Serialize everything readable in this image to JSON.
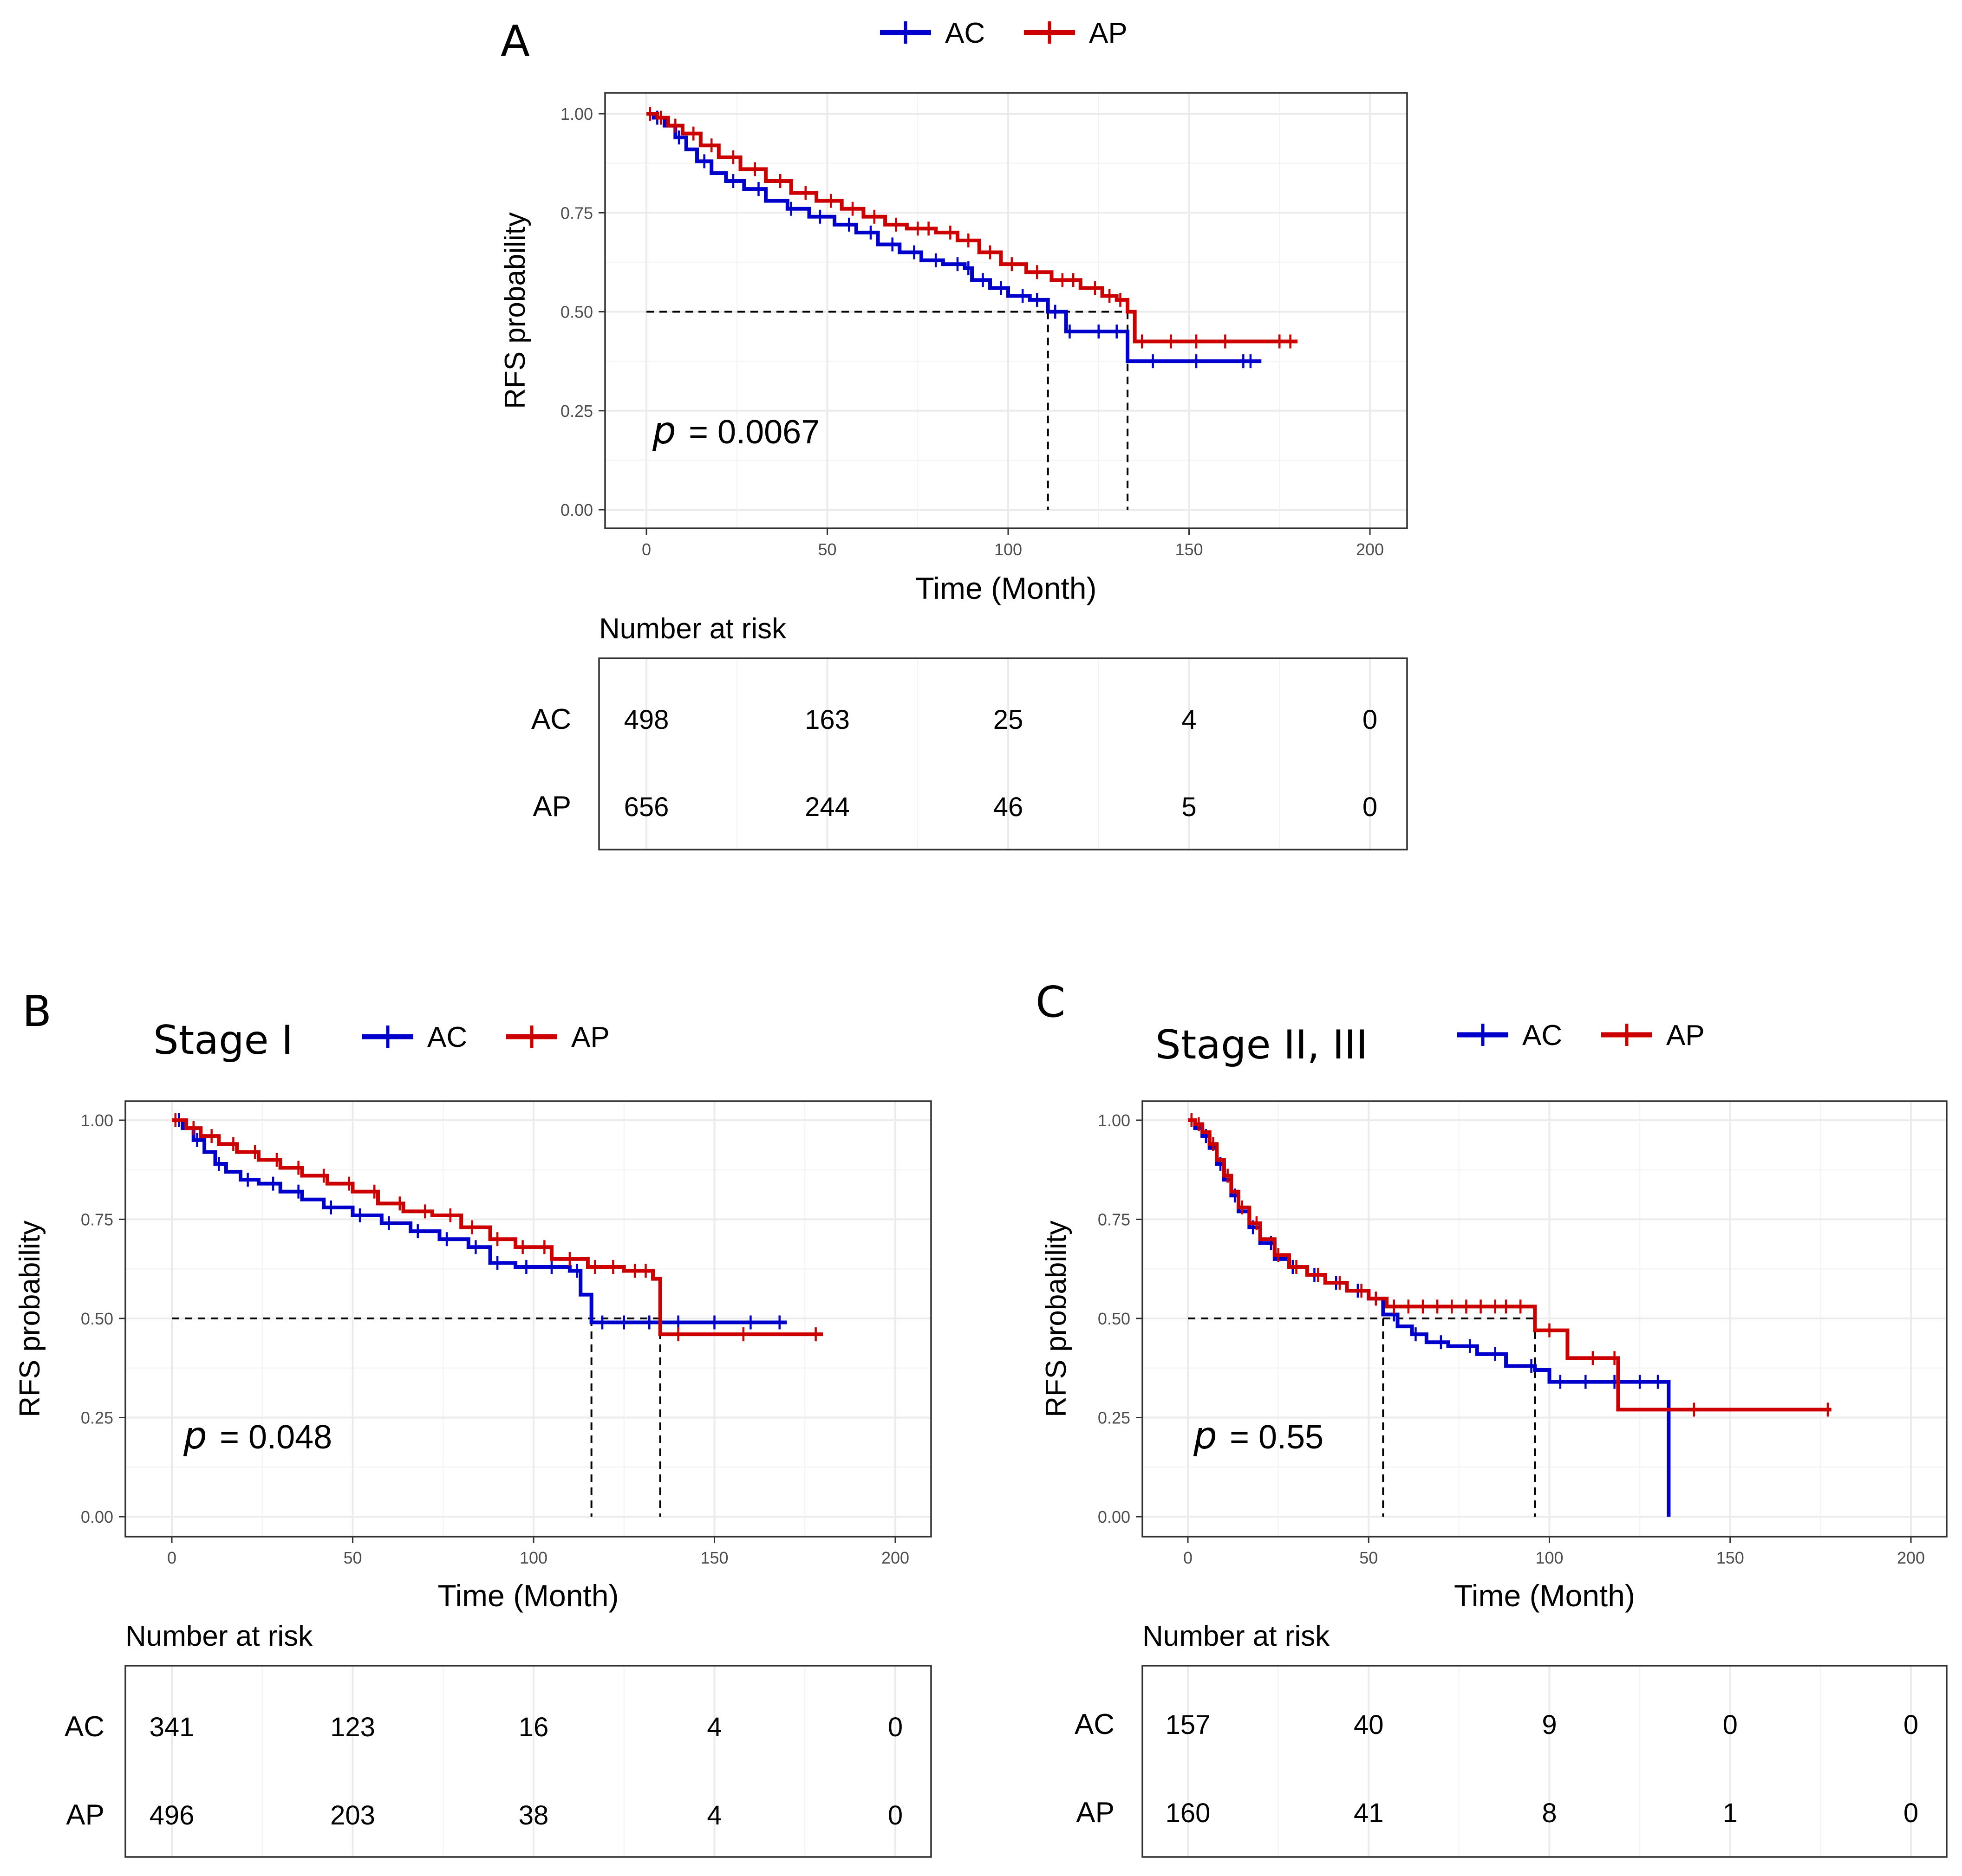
{
  "colors": {
    "AC": "#0000cd",
    "AP": "#cd0000"
  },
  "chart_data": [
    {
      "panel_label": "A",
      "subtitle": "",
      "type": "line",
      "chart_kind": "kaplan-meier",
      "legend": [
        "AC",
        "AP"
      ],
      "legend_position": "top",
      "xlabel": "Time (Month)",
      "ylabel": "RFS probability",
      "xlim": [
        0,
        200
      ],
      "ylim": [
        0,
        1
      ],
      "x_ticks": [
        0,
        50,
        100,
        150,
        200
      ],
      "y_ticks": [
        0,
        0.25,
        0.5,
        0.75,
        1
      ],
      "x_tick_labels": [
        "0",
        "50",
        "100",
        "150",
        "200"
      ],
      "y_tick_labels": [
        "0.00",
        "0.25",
        "0.50",
        "0.75",
        "1.00"
      ],
      "p_label": "p",
      "p_value": "= 0.0067",
      "medians": [
        111,
        133
      ],
      "series": [
        {
          "name": "AC",
          "x": [
            0,
            2,
            5,
            8,
            11,
            14,
            18,
            22,
            27,
            33,
            39,
            45,
            52,
            58,
            64,
            70,
            76,
            82,
            88,
            90,
            95,
            100,
            106,
            111,
            116,
            120,
            133,
            150,
            170
          ],
          "y": [
            1,
            0.99,
            0.97,
            0.94,
            0.91,
            0.88,
            0.85,
            0.83,
            0.81,
            0.78,
            0.76,
            0.74,
            0.72,
            0.7,
            0.67,
            0.65,
            0.63,
            0.62,
            0.61,
            0.58,
            0.56,
            0.54,
            0.53,
            0.5,
            0.45,
            0.45,
            0.375,
            0.375,
            0.375
          ],
          "censor_x": [
            3,
            9,
            16,
            24,
            31,
            40,
            48,
            56,
            62,
            68,
            74,
            80,
            86,
            89,
            93,
            98,
            104,
            108,
            113,
            117,
            125,
            130,
            140,
            152,
            165,
            167
          ]
        },
        {
          "name": "AP",
          "x": [
            0,
            3,
            6,
            10,
            15,
            20,
            26,
            33,
            40,
            47,
            54,
            60,
            66,
            72,
            80,
            86,
            92,
            98,
            105,
            112,
            120,
            126,
            130,
            133,
            135,
            150,
            180
          ],
          "y": [
            1,
            0.99,
            0.97,
            0.95,
            0.92,
            0.89,
            0.86,
            0.83,
            0.8,
            0.78,
            0.76,
            0.74,
            0.72,
            0.71,
            0.7,
            0.68,
            0.65,
            0.62,
            0.6,
            0.58,
            0.56,
            0.54,
            0.53,
            0.5,
            0.425,
            0.425,
            0.425
          ],
          "censor_x": [
            1,
            4,
            8,
            13,
            18,
            24,
            30,
            37,
            44,
            51,
            57,
            63,
            69,
            75,
            78,
            84,
            89,
            95,
            101,
            108,
            115,
            118,
            124,
            128,
            131,
            137,
            145,
            152,
            160,
            175,
            178
          ]
        }
      ],
      "risk_table": {
        "title": "Number at risk",
        "times": [
          0,
          50,
          100,
          150,
          200
        ],
        "rows": [
          {
            "name": "AC",
            "values": [
              "498",
              "163",
              "25",
              "4",
              "0"
            ]
          },
          {
            "name": "AP",
            "values": [
              "656",
              "244",
              "46",
              "5",
              "0"
            ]
          }
        ]
      }
    },
    {
      "panel_label": "B",
      "subtitle": "Stage I",
      "type": "line",
      "chart_kind": "kaplan-meier",
      "legend": [
        "AC",
        "AP"
      ],
      "legend_position": "top",
      "xlabel": "Time (Month)",
      "ylabel": "RFS probability",
      "xlim": [
        0,
        200
      ],
      "ylim": [
        0,
        1
      ],
      "x_ticks": [
        0,
        50,
        100,
        150,
        200
      ],
      "y_ticks": [
        0,
        0.25,
        0.5,
        0.75,
        1
      ],
      "x_tick_labels": [
        "0",
        "50",
        "100",
        "150",
        "200"
      ],
      "y_tick_labels": [
        "0.00",
        "0.25",
        "0.50",
        "0.75",
        "1.00"
      ],
      "p_label": "p",
      "p_value": "= 0.048",
      "medians": [
        116,
        135
      ],
      "series": [
        {
          "name": "AC",
          "x": [
            0,
            3,
            6,
            9,
            12,
            15,
            19,
            24,
            30,
            36,
            42,
            50,
            58,
            66,
            74,
            82,
            88,
            95,
            100,
            110,
            113,
            116,
            170
          ],
          "y": [
            1,
            0.98,
            0.95,
            0.92,
            0.89,
            0.87,
            0.85,
            0.84,
            0.82,
            0.8,
            0.78,
            0.76,
            0.74,
            0.72,
            0.7,
            0.68,
            0.64,
            0.63,
            0.63,
            0.62,
            0.56,
            0.49,
            0.49
          ],
          "censor_x": [
            2,
            7,
            13,
            21,
            28,
            35,
            44,
            52,
            60,
            68,
            76,
            84,
            90,
            98,
            105,
            112,
            119,
            125,
            132,
            140,
            150,
            160,
            168
          ]
        },
        {
          "name": "AP",
          "x": [
            0,
            4,
            8,
            13,
            18,
            24,
            30,
            36,
            43,
            50,
            57,
            64,
            72,
            80,
            88,
            95,
            105,
            115,
            125,
            133,
            135,
            180
          ],
          "y": [
            1,
            0.98,
            0.96,
            0.94,
            0.92,
            0.9,
            0.88,
            0.86,
            0.84,
            0.82,
            0.79,
            0.77,
            0.76,
            0.73,
            0.7,
            0.68,
            0.65,
            0.63,
            0.62,
            0.6,
            0.46,
            0.46
          ],
          "censor_x": [
            1,
            6,
            11,
            17,
            23,
            29,
            35,
            42,
            49,
            56,
            63,
            70,
            77,
            83,
            90,
            97,
            103,
            110,
            117,
            122,
            128,
            131,
            140,
            158,
            178
          ]
        }
      ],
      "risk_table": {
        "title": "Number at risk",
        "times": [
          0,
          50,
          100,
          150,
          200
        ],
        "rows": [
          {
            "name": "AC",
            "values": [
              "341",
              "123",
              "16",
              "4",
              "0"
            ]
          },
          {
            "name": "AP",
            "values": [
              "496",
              "203",
              "38",
              "4",
              "0"
            ]
          }
        ]
      }
    },
    {
      "panel_label": "C",
      "subtitle": "Stage II, III",
      "type": "line",
      "chart_kind": "kaplan-meier",
      "legend": [
        "AC",
        "AP"
      ],
      "legend_position": "top",
      "xlabel": "Time (Month)",
      "ylabel": "RFS probability",
      "xlim": [
        0,
        200
      ],
      "ylim": [
        0,
        1
      ],
      "x_ticks": [
        0,
        50,
        100,
        150,
        200
      ],
      "y_ticks": [
        0,
        0.25,
        0.5,
        0.75,
        1
      ],
      "x_tick_labels": [
        "0",
        "50",
        "100",
        "150",
        "200"
      ],
      "y_tick_labels": [
        "0.00",
        "0.25",
        "0.50",
        "0.75",
        "1.00"
      ],
      "p_label": "p",
      "p_value": "= 0.55",
      "medians": [
        54,
        96
      ],
      "series": [
        {
          "name": "AC",
          "x": [
            0,
            2,
            4,
            6,
            8,
            10,
            12,
            14,
            17,
            20,
            24,
            28,
            33,
            38,
            44,
            50,
            54,
            58,
            62,
            66,
            72,
            80,
            88,
            96,
            100,
            110,
            120,
            133
          ],
          "y": [
            1,
            0.98,
            0.96,
            0.93,
            0.89,
            0.85,
            0.81,
            0.77,
            0.73,
            0.69,
            0.65,
            0.63,
            0.61,
            0.59,
            0.57,
            0.55,
            0.51,
            0.48,
            0.46,
            0.44,
            0.43,
            0.41,
            0.38,
            0.37,
            0.34,
            0.34,
            0.34,
            0
          ],
          "censor_x": [
            1,
            5,
            9,
            13,
            18,
            23,
            29,
            35,
            41,
            47,
            52,
            57,
            63,
            70,
            78,
            85,
            95,
            103,
            110,
            118,
            125,
            130
          ]
        },
        {
          "name": "AP",
          "x": [
            0,
            2,
            4,
            6,
            8,
            10,
            12,
            14,
            17,
            20,
            24,
            28,
            33,
            38,
            44,
            50,
            55,
            70,
            96,
            105,
            119,
            130,
            178
          ],
          "y": [
            1,
            0.99,
            0.97,
            0.94,
            0.9,
            0.86,
            0.82,
            0.78,
            0.74,
            0.7,
            0.66,
            0.63,
            0.61,
            0.59,
            0.57,
            0.55,
            0.53,
            0.53,
            0.47,
            0.4,
            0.27,
            0.27,
            0.27
          ],
          "censor_x": [
            1,
            3,
            7,
            11,
            15,
            19,
            25,
            30,
            36,
            42,
            48,
            52,
            57,
            61,
            65,
            69,
            73,
            77,
            81,
            85,
            88,
            92,
            100,
            112,
            118,
            140,
            177
          ]
        }
      ],
      "risk_table": {
        "title": "Number at risk",
        "times": [
          0,
          50,
          100,
          150,
          200
        ],
        "rows": [
          {
            "name": "AC",
            "values": [
              "157",
              "40",
              "9",
              "0",
              "0"
            ]
          },
          {
            "name": "AP",
            "values": [
              "160",
              "41",
              "8",
              "1",
              "0"
            ]
          }
        ]
      }
    }
  ]
}
